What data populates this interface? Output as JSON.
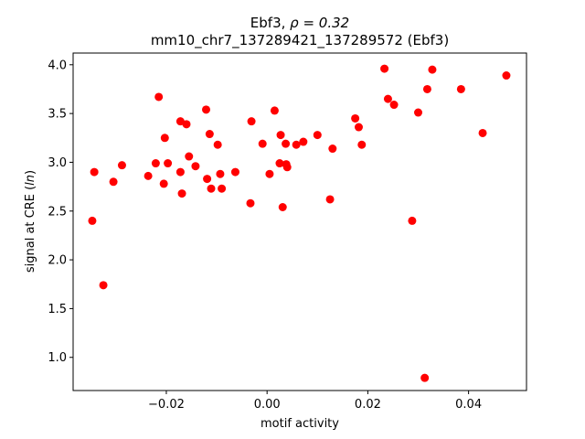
{
  "chart_data": {
    "type": "scatter",
    "title_line1_name": "Ebf3, ",
    "title_line1_rho": "ρ = 0.32",
    "title_line2": "mm10_chr7_137289421_137289572 (Ebf3)",
    "xlabel": "motif activity",
    "ylabel_prefix": "signal at CRE (",
    "ylabel_italic": "ln",
    "ylabel_suffix": ")",
    "xlim": [
      -0.0385,
      0.0515
    ],
    "ylim": [
      0.66,
      4.12
    ],
    "xticks": [
      -0.02,
      0.0,
      0.02,
      0.04
    ],
    "xtick_labels": [
      "−0.02",
      "0.00",
      "0.02",
      "0.04"
    ],
    "yticks": [
      1.0,
      1.5,
      2.0,
      2.5,
      3.0,
      3.5,
      4.0
    ],
    "ytick_labels": [
      "1.0",
      "1.5",
      "2.0",
      "2.5",
      "3.0",
      "3.5",
      "4.0"
    ],
    "marker_color": "#ff0000",
    "grid": false,
    "points": [
      {
        "x": -0.0347,
        "y": 2.4
      },
      {
        "x": -0.0343,
        "y": 2.9
      },
      {
        "x": -0.0325,
        "y": 1.74
      },
      {
        "x": -0.0305,
        "y": 2.8
      },
      {
        "x": -0.0288,
        "y": 2.97
      },
      {
        "x": -0.0236,
        "y": 2.86
      },
      {
        "x": -0.0221,
        "y": 2.99
      },
      {
        "x": -0.0215,
        "y": 3.67
      },
      {
        "x": -0.0205,
        "y": 2.78
      },
      {
        "x": -0.0203,
        "y": 3.25
      },
      {
        "x": -0.0197,
        "y": 2.99
      },
      {
        "x": -0.0172,
        "y": 3.42
      },
      {
        "x": -0.0172,
        "y": 2.9
      },
      {
        "x": -0.0169,
        "y": 2.68
      },
      {
        "x": -0.016,
        "y": 3.39
      },
      {
        "x": -0.0155,
        "y": 3.06
      },
      {
        "x": -0.0142,
        "y": 2.96
      },
      {
        "x": -0.0121,
        "y": 3.54
      },
      {
        "x": -0.0119,
        "y": 2.83
      },
      {
        "x": -0.0114,
        "y": 3.29
      },
      {
        "x": -0.0111,
        "y": 2.73
      },
      {
        "x": -0.0098,
        "y": 3.18
      },
      {
        "x": -0.0093,
        "y": 2.88
      },
      {
        "x": -0.009,
        "y": 2.73
      },
      {
        "x": -0.0063,
        "y": 2.9
      },
      {
        "x": -0.0033,
        "y": 2.58
      },
      {
        "x": -0.0031,
        "y": 3.42
      },
      {
        "x": -0.0009,
        "y": 3.19
      },
      {
        "x": 0.0005,
        "y": 2.88
      },
      {
        "x": 0.0015,
        "y": 3.53
      },
      {
        "x": 0.0025,
        "y": 2.99
      },
      {
        "x": 0.0027,
        "y": 3.28
      },
      {
        "x": 0.0031,
        "y": 2.54
      },
      {
        "x": 0.0037,
        "y": 3.19
      },
      {
        "x": 0.0038,
        "y": 2.98
      },
      {
        "x": 0.004,
        "y": 2.95
      },
      {
        "x": 0.0058,
        "y": 3.18
      },
      {
        "x": 0.0072,
        "y": 3.21
      },
      {
        "x": 0.01,
        "y": 3.28
      },
      {
        "x": 0.0125,
        "y": 2.62
      },
      {
        "x": 0.013,
        "y": 3.14
      },
      {
        "x": 0.0175,
        "y": 3.45
      },
      {
        "x": 0.0182,
        "y": 3.36
      },
      {
        "x": 0.0188,
        "y": 3.18
      },
      {
        "x": 0.0233,
        "y": 3.96
      },
      {
        "x": 0.024,
        "y": 3.65
      },
      {
        "x": 0.0252,
        "y": 3.59
      },
      {
        "x": 0.0288,
        "y": 2.4
      },
      {
        "x": 0.03,
        "y": 3.51
      },
      {
        "x": 0.0313,
        "y": 0.79
      },
      {
        "x": 0.0318,
        "y": 3.75
      },
      {
        "x": 0.0328,
        "y": 3.95
      },
      {
        "x": 0.0385,
        "y": 3.75
      },
      {
        "x": 0.0428,
        "y": 3.3
      },
      {
        "x": 0.0475,
        "y": 3.89
      }
    ]
  }
}
